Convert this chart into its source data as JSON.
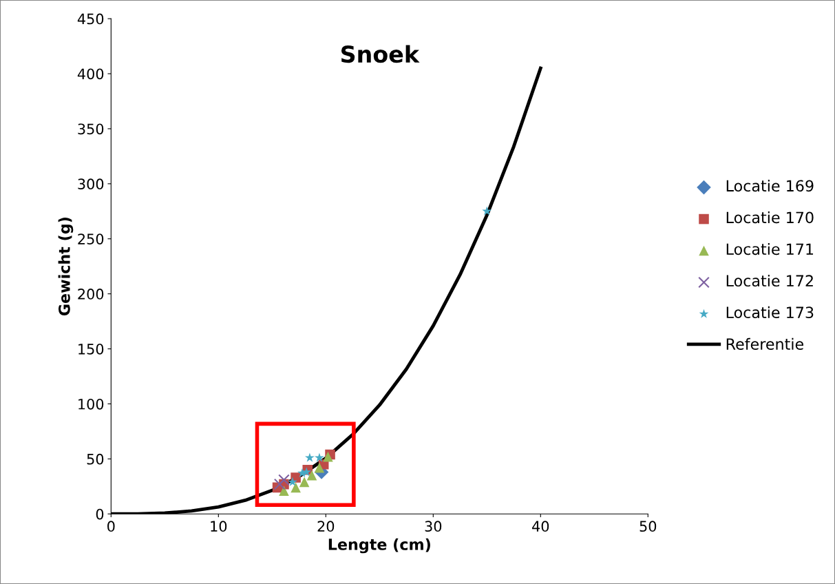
{
  "chart_data": {
    "type": "scatter",
    "title": "Snoek",
    "xlabel": "Lengte (cm)",
    "ylabel": "Gewicht (g)",
    "xlim": [
      0,
      50
    ],
    "xticks": [
      0,
      10,
      20,
      30,
      40,
      50
    ],
    "ylim": [
      0,
      450
    ],
    "yticks": [
      0,
      50,
      100,
      150,
      200,
      250,
      300,
      350,
      400,
      450
    ],
    "grid": false,
    "legend": "right",
    "series": [
      {
        "name": "Locatie 169",
        "color": "#4a7ebb",
        "marker": "diamond",
        "x": [
          19.6
        ],
        "values": [
          38
        ]
      },
      {
        "name": "Locatie 170",
        "color": "#be4b48",
        "marker": "square",
        "x": [
          15.5,
          16.1,
          17.2,
          18.3,
          19.8,
          20.4
        ],
        "values": [
          24,
          27,
          33,
          40,
          45,
          54
        ]
      },
      {
        "name": "Locatie 171",
        "color": "#98b954",
        "marker": "triangle",
        "x": [
          16.1,
          17.2,
          18.0,
          18.7,
          19.4,
          20.2
        ],
        "values": [
          21,
          24,
          29,
          35,
          42,
          52
        ]
      },
      {
        "name": "Locatie 172",
        "color": "#7d60a0",
        "marker": "cross",
        "x": [
          15.7,
          16.1
        ],
        "values": [
          27,
          31
        ]
      },
      {
        "name": "Locatie 173",
        "color": "#46aac5",
        "marker": "star",
        "x": [
          16.9,
          17.8,
          18.2,
          18.5,
          19.4,
          35.0
        ],
        "values": [
          29,
          37,
          38,
          51,
          51,
          275
        ]
      },
      {
        "name": "Referentie",
        "type": "line",
        "color": "#000000",
        "marker": "none",
        "line_style": "solid",
        "x": [
          0,
          2.5,
          5,
          7.5,
          10,
          12.5,
          15,
          17.5,
          20,
          22.5,
          25,
          27.5,
          30,
          32.5,
          35,
          37.5,
          40
        ],
        "values": [
          0,
          0.1,
          0.8,
          2.7,
          6.3,
          12.4,
          21.4,
          33.9,
          50.6,
          72.1,
          98.9,
          131.6,
          170.9,
          217.3,
          271.4,
          333.8,
          405
        ]
      }
    ]
  }
}
